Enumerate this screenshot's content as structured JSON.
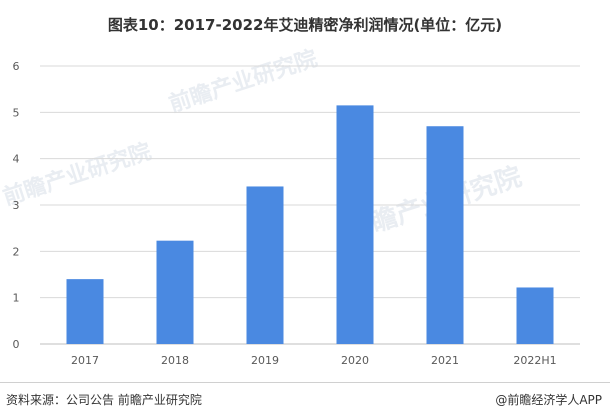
{
  "chart_data": {
    "type": "bar",
    "title": "图表10：2017-2022年艾迪精密净利润情况(单位：亿元)",
    "categories": [
      "2017",
      "2018",
      "2019",
      "2020",
      "2021",
      "2022H1"
    ],
    "values": [
      1.4,
      2.23,
      3.4,
      5.15,
      4.7,
      1.22
    ],
    "ylim": [
      0,
      6
    ],
    "yticks": [
      0,
      1,
      2,
      3,
      4,
      5,
      6
    ],
    "xlabel": "",
    "ylabel": "",
    "grid": true,
    "color": "#4a89e1"
  },
  "watermark": {
    "text": "前瞻产业研究院"
  },
  "footer": {
    "source": "资料来源：公司公告 前瞻产业研究院",
    "credit": "@前瞻经济学人APP"
  }
}
